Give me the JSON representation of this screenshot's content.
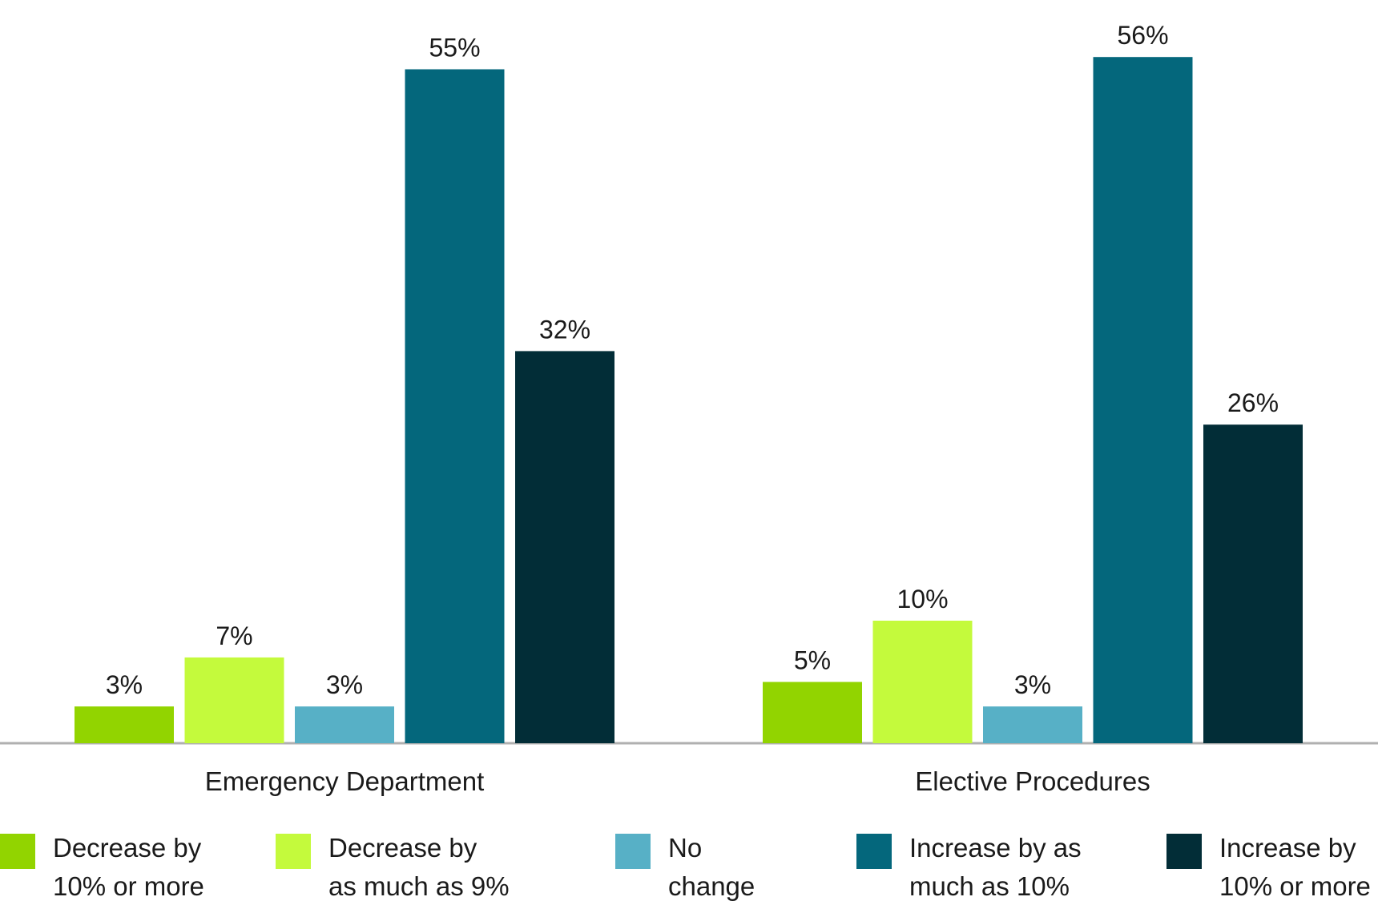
{
  "chart_data": {
    "type": "bar",
    "categories": [
      "Emergency Department",
      "Elective Procedures"
    ],
    "series": [
      {
        "name": "Decrease by 10% or more",
        "color": "#92d400",
        "values": [
          3,
          5
        ],
        "labels": [
          "3%",
          "5%"
        ]
      },
      {
        "name": "Decrease by as much as 9%",
        "color": "#c4fa3c",
        "values": [
          7,
          10
        ],
        "labels": [
          "7%",
          "10%"
        ]
      },
      {
        "name": "No change",
        "color": "#57b0c6",
        "values": [
          3,
          3
        ],
        "labels": [
          "3%",
          "3%"
        ]
      },
      {
        "name": "Increase by as much as 10%",
        "color": "#04677c",
        "values": [
          55,
          56
        ],
        "labels": [
          "55%",
          "56%"
        ]
      },
      {
        "name": "Increase by 10% or more",
        "color": "#022d37",
        "values": [
          32,
          26
        ],
        "labels": [
          "32%",
          "26%"
        ]
      }
    ],
    "ylim": [
      0,
      60
    ],
    "grid": false,
    "legend_position": "bottom",
    "axis_color": "#b0b0b0"
  },
  "legend": {
    "lines": [
      [
        "Decrease by",
        "10% or more"
      ],
      [
        "Decrease by",
        "as much as 9%"
      ],
      [
        "No",
        "change"
      ],
      [
        "Increase by as",
        "much as 10%"
      ],
      [
        "Increase by",
        "10% or more"
      ]
    ]
  }
}
